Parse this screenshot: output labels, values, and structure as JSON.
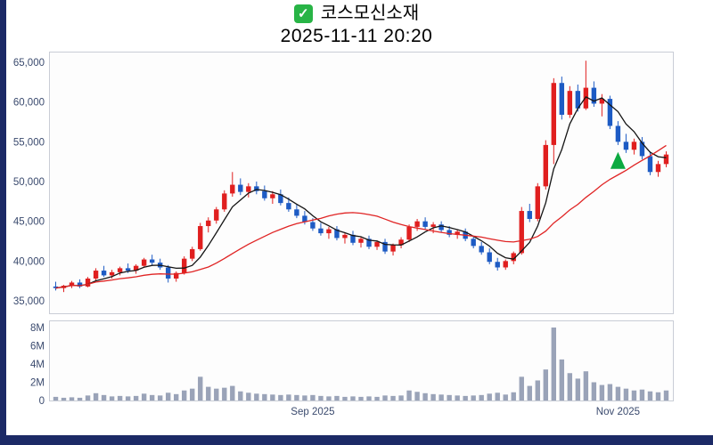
{
  "header": {
    "check_glyph": "✓",
    "title": "코스모신소재",
    "subtitle": "2025-11-11 20:20"
  },
  "chart_data": {
    "type": "candlestick",
    "title": "코스모신소재",
    "subtitle": "2025-11-11 20:20",
    "grid": false,
    "legend_position": "none",
    "price_axis": {
      "min": 33500,
      "max": 66300,
      "ticks": [
        {
          "value": 65000,
          "label": "65,000"
        },
        {
          "value": 60000,
          "label": "60,000"
        },
        {
          "value": 55000,
          "label": "55,000"
        },
        {
          "value": 50000,
          "label": "50,000"
        },
        {
          "value": 45000,
          "label": "45,000"
        },
        {
          "value": 40000,
          "label": "40,000"
        },
        {
          "value": 35000,
          "label": "35,000"
        }
      ]
    },
    "volume_axis": {
      "max_m": 8,
      "ticks": [
        {
          "value": 8,
          "label": "8M"
        },
        {
          "value": 6,
          "label": "6M"
        },
        {
          "value": 4,
          "label": "4M"
        },
        {
          "value": 2,
          "label": "2M"
        },
        {
          "value": 0,
          "label": "0"
        }
      ]
    },
    "x_ticks": [
      {
        "index": 32,
        "label": "Sep 2025"
      },
      {
        "index": 70,
        "label": "Nov 2025"
      }
    ],
    "candles": [
      [
        36800,
        37400,
        36300,
        36600
      ],
      [
        36600,
        37000,
        36100,
        36900
      ],
      [
        36900,
        37500,
        36600,
        37300
      ],
      [
        37300,
        37700,
        36600,
        36800
      ],
      [
        36800,
        38000,
        36700,
        37800
      ],
      [
        37800,
        39100,
        37500,
        38800
      ],
      [
        38800,
        39400,
        38000,
        38200
      ],
      [
        38200,
        38900,
        37800,
        38600
      ],
      [
        38600,
        39300,
        38200,
        39100
      ],
      [
        39100,
        39700,
        38500,
        38800
      ],
      [
        38800,
        39600,
        38400,
        39400
      ],
      [
        39400,
        40400,
        39200,
        40200
      ],
      [
        40200,
        40800,
        39500,
        39800
      ],
      [
        39800,
        40300,
        38900,
        39200
      ],
      [
        39200,
        39500,
        37300,
        37800
      ],
      [
        37800,
        38700,
        37400,
        38500
      ],
      [
        38500,
        40600,
        38300,
        40300
      ],
      [
        40300,
        41800,
        40000,
        41500
      ],
      [
        41500,
        44800,
        41300,
        44400
      ],
      [
        44400,
        45500,
        43600,
        45100
      ],
      [
        45100,
        46800,
        44700,
        46500
      ],
      [
        46500,
        48900,
        46200,
        48500
      ],
      [
        48500,
        51200,
        48100,
        49600
      ],
      [
        49600,
        50400,
        48300,
        48700
      ],
      [
        48700,
        49800,
        48000,
        49400
      ],
      [
        49400,
        50000,
        48400,
        48800
      ],
      [
        48800,
        49500,
        47600,
        47900
      ],
      [
        47900,
        48800,
        47200,
        48400
      ],
      [
        48400,
        49000,
        47000,
        47300
      ],
      [
        47300,
        48000,
        46200,
        46500
      ],
      [
        46500,
        47200,
        45400,
        45700
      ],
      [
        45700,
        46300,
        44600,
        44900
      ],
      [
        44900,
        45400,
        43800,
        44100
      ],
      [
        44100,
        44800,
        43200,
        43500
      ],
      [
        43500,
        44300,
        42800,
        44000
      ],
      [
        44000,
        44400,
        42600,
        42900
      ],
      [
        42900,
        43600,
        42200,
        43300
      ],
      [
        43300,
        43800,
        42000,
        42300
      ],
      [
        42300,
        43000,
        41700,
        42800
      ],
      [
        42800,
        43200,
        41500,
        41800
      ],
      [
        41800,
        42600,
        41400,
        42400
      ],
      [
        42400,
        42800,
        40900,
        41200
      ],
      [
        41200,
        42200,
        40700,
        42000
      ],
      [
        42000,
        43000,
        41600,
        42700
      ],
      [
        42700,
        44600,
        42400,
        44300
      ],
      [
        44300,
        45300,
        43800,
        45000
      ],
      [
        45000,
        45500,
        44000,
        44300
      ],
      [
        44300,
        44900,
        43500,
        44600
      ],
      [
        44600,
        45000,
        43600,
        43900
      ],
      [
        43900,
        44400,
        43000,
        43300
      ],
      [
        43300,
        44000,
        42800,
        43700
      ],
      [
        43700,
        44100,
        42500,
        42800
      ],
      [
        42800,
        43200,
        41600,
        41900
      ],
      [
        41900,
        42400,
        40800,
        41100
      ],
      [
        41100,
        41600,
        39600,
        39900
      ],
      [
        39900,
        40400,
        38800,
        39200
      ],
      [
        39200,
        40200,
        38900,
        40000
      ],
      [
        40000,
        41200,
        39600,
        41000
      ],
      [
        41000,
        46800,
        40800,
        46300
      ],
      [
        46300,
        47200,
        44900,
        45300
      ],
      [
        45300,
        49800,
        45000,
        49400
      ],
      [
        49400,
        55200,
        49000,
        54600
      ],
      [
        54600,
        63000,
        52200,
        62400
      ],
      [
        62400,
        63200,
        57800,
        58400
      ],
      [
        58400,
        62000,
        58000,
        61400
      ],
      [
        61400,
        62200,
        58800,
        59200
      ],
      [
        59200,
        65200,
        59000,
        61800
      ],
      [
        61800,
        62600,
        59400,
        59800
      ],
      [
        59800,
        61000,
        58200,
        60400
      ],
      [
        60400,
        60800,
        56600,
        57000
      ],
      [
        57000,
        57600,
        54600,
        55000
      ],
      [
        55000,
        56000,
        53600,
        54000
      ],
      [
        54000,
        55400,
        53400,
        55000
      ],
      [
        55000,
        55600,
        52800,
        53200
      ],
      [
        53200,
        53800,
        50800,
        51200
      ],
      [
        51200,
        52600,
        50600,
        52200
      ],
      [
        52200,
        53800,
        51800,
        53400
      ]
    ],
    "volumes_m": [
      0.4,
      0.3,
      0.35,
      0.3,
      0.55,
      0.8,
      0.6,
      0.45,
      0.5,
      0.45,
      0.5,
      0.75,
      0.6,
      0.55,
      0.85,
      0.7,
      1.1,
      1.3,
      2.6,
      1.5,
      1.3,
      1.4,
      1.6,
      1.0,
      0.85,
      0.75,
      0.7,
      0.65,
      0.6,
      0.65,
      0.6,
      0.55,
      0.6,
      0.5,
      0.45,
      0.5,
      0.4,
      0.45,
      0.4,
      0.45,
      0.4,
      0.55,
      0.5,
      0.55,
      1.1,
      0.95,
      0.8,
      0.7,
      0.65,
      0.6,
      0.55,
      0.5,
      0.55,
      0.6,
      0.75,
      0.85,
      0.65,
      0.9,
      2.6,
      1.6,
      2.2,
      3.4,
      8.0,
      4.5,
      3.0,
      2.4,
      3.2,
      2.0,
      1.7,
      1.8,
      1.5,
      1.3,
      1.1,
      1.2,
      1.0,
      0.9,
      1.1
    ],
    "moving_averages": [
      {
        "name": "ma-short",
        "period": 5,
        "color": "#151515"
      },
      {
        "name": "ma-long",
        "period": 20,
        "color": "#e02424"
      }
    ],
    "marker": {
      "type": "triangle-up",
      "index": 70,
      "price": 52600,
      "color": "#0caa41"
    },
    "colors": {
      "up": "#e01f1f",
      "down": "#1d5bc4",
      "volume_bar": "#9aa3b8",
      "axis_text": "#3a4a6e",
      "panel_border": "#c9cdd6",
      "frame": "#1c2a66",
      "checkbox_green": "#28b446",
      "marker_green": "#0caa41"
    }
  }
}
